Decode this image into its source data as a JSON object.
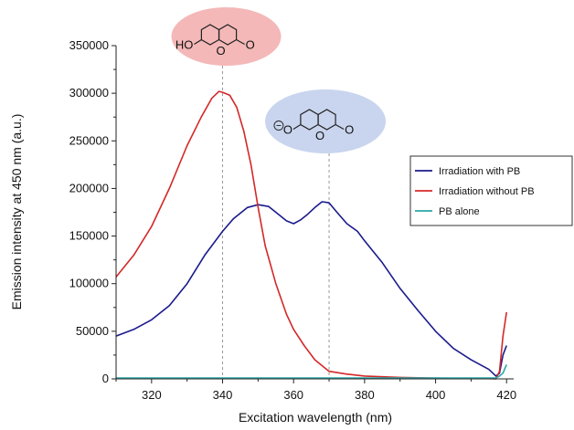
{
  "chart_data": {
    "type": "line",
    "xlabel": "Excitation wavelength (nm)",
    "ylabel": "Emission intensity at 450 nm (a.u.)",
    "xlim": [
      310,
      422
    ],
    "ylim": [
      0,
      350000
    ],
    "xticks": [
      320,
      340,
      360,
      380,
      400,
      420
    ],
    "yticks": [
      0,
      50000,
      100000,
      150000,
      200000,
      250000,
      300000,
      350000
    ],
    "legend_position": "right",
    "series": [
      {
        "name": "Irradiation with PB",
        "color": "#1a1a8c",
        "x": [
          310,
          315,
          320,
          325,
          330,
          335,
          340,
          343,
          347,
          350,
          353,
          356,
          358,
          360,
          362,
          364,
          366,
          368,
          370,
          372,
          375,
          378,
          380,
          385,
          390,
          395,
          400,
          405,
          410,
          415,
          417,
          418,
          419,
          420
        ],
        "y": [
          45000,
          52000,
          62000,
          77000,
          100000,
          130000,
          155000,
          168000,
          180000,
          183000,
          181000,
          172000,
          166000,
          163000,
          167000,
          173000,
          180000,
          186000,
          185000,
          176000,
          163000,
          155000,
          145000,
          122000,
          95000,
          72000,
          50000,
          32000,
          20000,
          10000,
          3000,
          6000,
          25000,
          35000
        ]
      },
      {
        "name": "Irradiation without PB",
        "color": "#d42828",
        "x": [
          310,
          315,
          320,
          325,
          330,
          334,
          337,
          339,
          340,
          342,
          344,
          346,
          348,
          350,
          352,
          355,
          358,
          360,
          363,
          366,
          370,
          375,
          380,
          390,
          400,
          410,
          415,
          417,
          418,
          419,
          420
        ],
        "y": [
          107000,
          130000,
          160000,
          200000,
          245000,
          275000,
          295000,
          302000,
          301000,
          298000,
          285000,
          260000,
          225000,
          180000,
          140000,
          100000,
          68000,
          52000,
          35000,
          20000,
          8000,
          5000,
          3000,
          1500,
          800,
          500,
          300,
          100,
          8000,
          45000,
          70000
        ]
      },
      {
        "name": "PB alone",
        "color": "#2aa6a6",
        "x": [
          310,
          330,
          350,
          370,
          390,
          410,
          417,
          418,
          419,
          420
        ],
        "y": [
          1000,
          1000,
          1000,
          1000,
          1000,
          1000,
          1000,
          3000,
          6000,
          15000
        ]
      }
    ],
    "annotations": [
      {
        "label": "HO",
        "fill": "#f4b8b8",
        "x": 340
      },
      {
        "label": "O",
        "fill": "#c9d5ee",
        "x": 370
      }
    ]
  }
}
